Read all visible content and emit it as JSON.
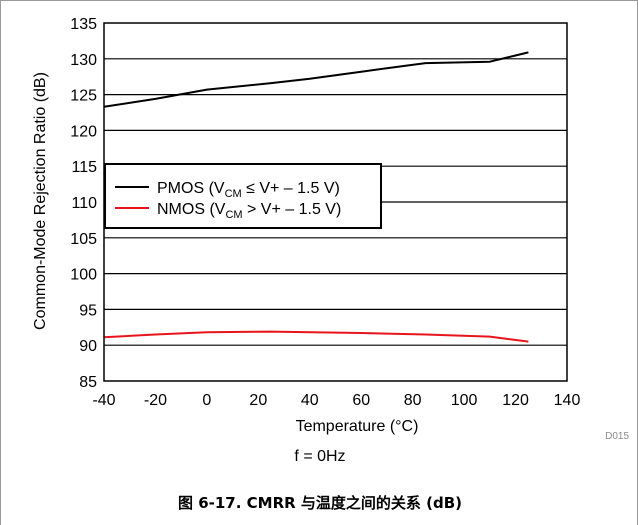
{
  "chart_data": {
    "type": "line",
    "xlabel": "Temperature (°C)",
    "ylabel": "Common-Mode Rejection Ratio (dB)",
    "xlim": [
      -40,
      140
    ],
    "ylim": [
      85,
      135
    ],
    "x_ticks": [
      "-40",
      "-20",
      "0",
      "20",
      "40",
      "60",
      "80",
      "100",
      "120",
      "140"
    ],
    "y_ticks": [
      "135",
      "130",
      "125",
      "120",
      "115",
      "110",
      "105",
      "100",
      "95",
      "90",
      "85"
    ],
    "grid": "horizontal",
    "legend_position": "center-left",
    "series": [
      {
        "name": "PMOS (VCM ≤ V+ – 1.5 V)",
        "label_main": "PMOS (V",
        "label_sub": "CM",
        "label_rest": " ≤ V+ – 1.5 V)",
        "color": "#000000",
        "x": [
          -40,
          -20,
          0,
          25,
          40,
          60,
          85,
          110,
          125
        ],
        "y": [
          123.3,
          124.4,
          125.7,
          126.6,
          127.2,
          128.2,
          129.4,
          129.6,
          130.9
        ]
      },
      {
        "name": "NMOS (VCM > V+ – 1.5 V)",
        "label_main": "NMOS (V",
        "label_sub": "CM",
        "label_rest": " > V+ – 1.5 V)",
        "color": "#e8141b",
        "x": [
          -40,
          -20,
          0,
          25,
          60,
          85,
          110,
          125
        ],
        "y": [
          91.1,
          91.5,
          91.8,
          91.9,
          91.7,
          91.5,
          91.2,
          90.5
        ]
      }
    ]
  },
  "figure_code": "D015",
  "condition": "f = 0Hz",
  "caption": "图 6-17. CMRR 与温度之间的关系 (dB)"
}
